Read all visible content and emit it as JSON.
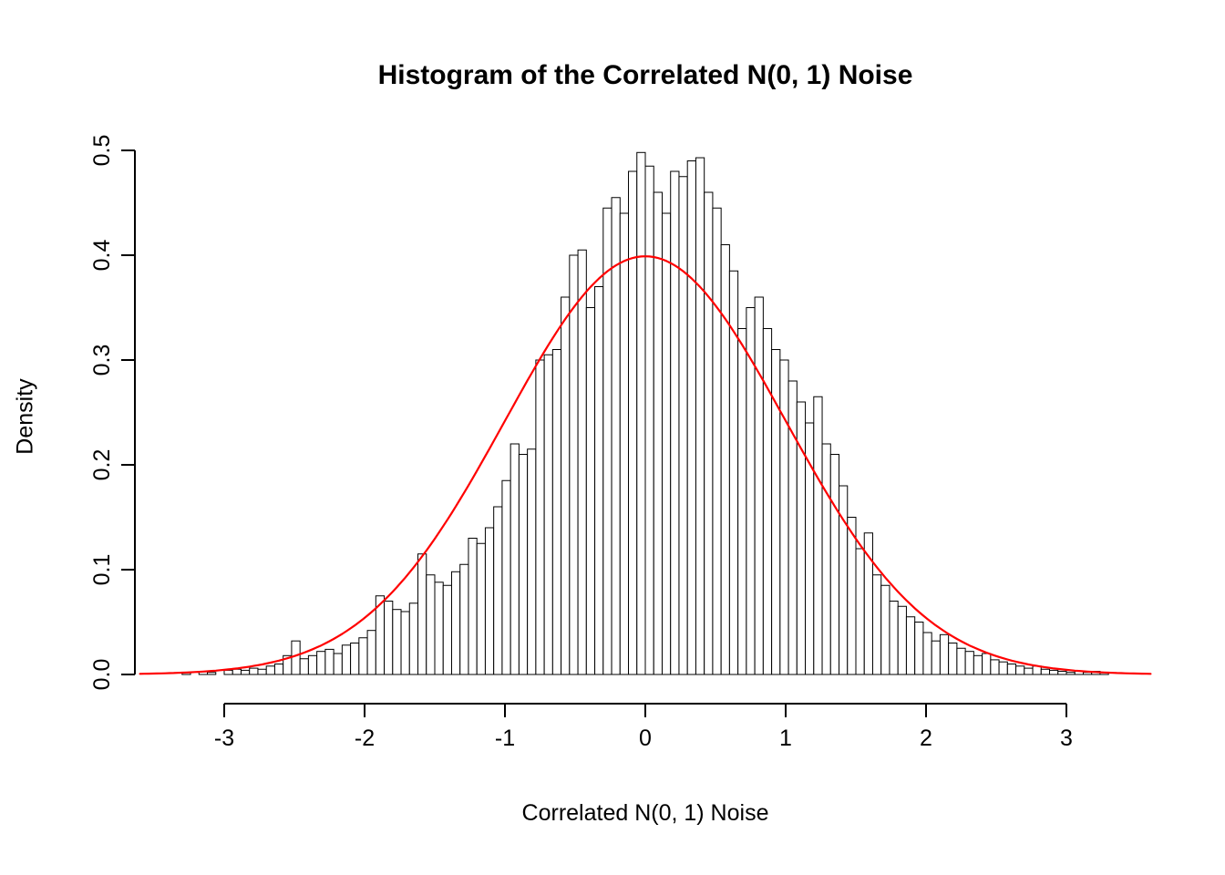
{
  "chart_data": {
    "type": "bar",
    "subtype": "histogram-with-density-curve",
    "title": "Histogram of the Correlated N(0, 1) Noise",
    "xlabel": "Correlated N(0, 1) Noise",
    "ylabel": "Density",
    "xlim": [
      -3.6,
      3.6
    ],
    "ylim": [
      0.0,
      0.5
    ],
    "x_ticks": [
      -3,
      -2,
      -1,
      0,
      1,
      2,
      3
    ],
    "y_ticks": [
      0.0,
      0.1,
      0.2,
      0.3,
      0.4,
      0.5
    ],
    "grid": false,
    "legend": false,
    "background_color": "#ffffff",
    "axis_color": "#000000",
    "histogram": {
      "bin_start": -3.3,
      "bin_width": 0.06,
      "bar_fill": "#ffffff",
      "bar_stroke": "#000000",
      "densities": [
        0.002,
        0.0,
        0.003,
        0.002,
        0.0,
        0.004,
        0.005,
        0.004,
        0.006,
        0.005,
        0.008,
        0.01,
        0.018,
        0.032,
        0.015,
        0.018,
        0.022,
        0.024,
        0.02,
        0.028,
        0.03,
        0.035,
        0.042,
        0.075,
        0.07,
        0.062,
        0.06,
        0.068,
        0.115,
        0.095,
        0.088,
        0.085,
        0.098,
        0.105,
        0.13,
        0.125,
        0.14,
        0.16,
        0.185,
        0.22,
        0.21,
        0.215,
        0.3,
        0.305,
        0.31,
        0.36,
        0.4,
        0.405,
        0.35,
        0.37,
        0.445,
        0.455,
        0.44,
        0.48,
        0.498,
        0.485,
        0.46,
        0.44,
        0.48,
        0.475,
        0.49,
        0.493,
        0.46,
        0.445,
        0.41,
        0.385,
        0.33,
        0.35,
        0.36,
        0.33,
        0.31,
        0.3,
        0.28,
        0.26,
        0.24,
        0.265,
        0.22,
        0.21,
        0.18,
        0.15,
        0.12,
        0.135,
        0.095,
        0.085,
        0.07,
        0.065,
        0.055,
        0.05,
        0.04,
        0.032,
        0.038,
        0.03,
        0.025,
        0.022,
        0.018,
        0.02,
        0.014,
        0.012,
        0.01,
        0.008,
        0.006,
        0.008,
        0.005,
        0.004,
        0.003,
        0.002,
        0.003,
        0.002,
        0.003,
        0.002
      ]
    },
    "overlay_curve": {
      "name": "standard-normal-density",
      "formula": "dnorm(x, mean = 0, sd = 1)",
      "color": "#ff0000",
      "x_range": [
        -3.6,
        3.6
      ],
      "peak_density": 0.3989
    }
  }
}
